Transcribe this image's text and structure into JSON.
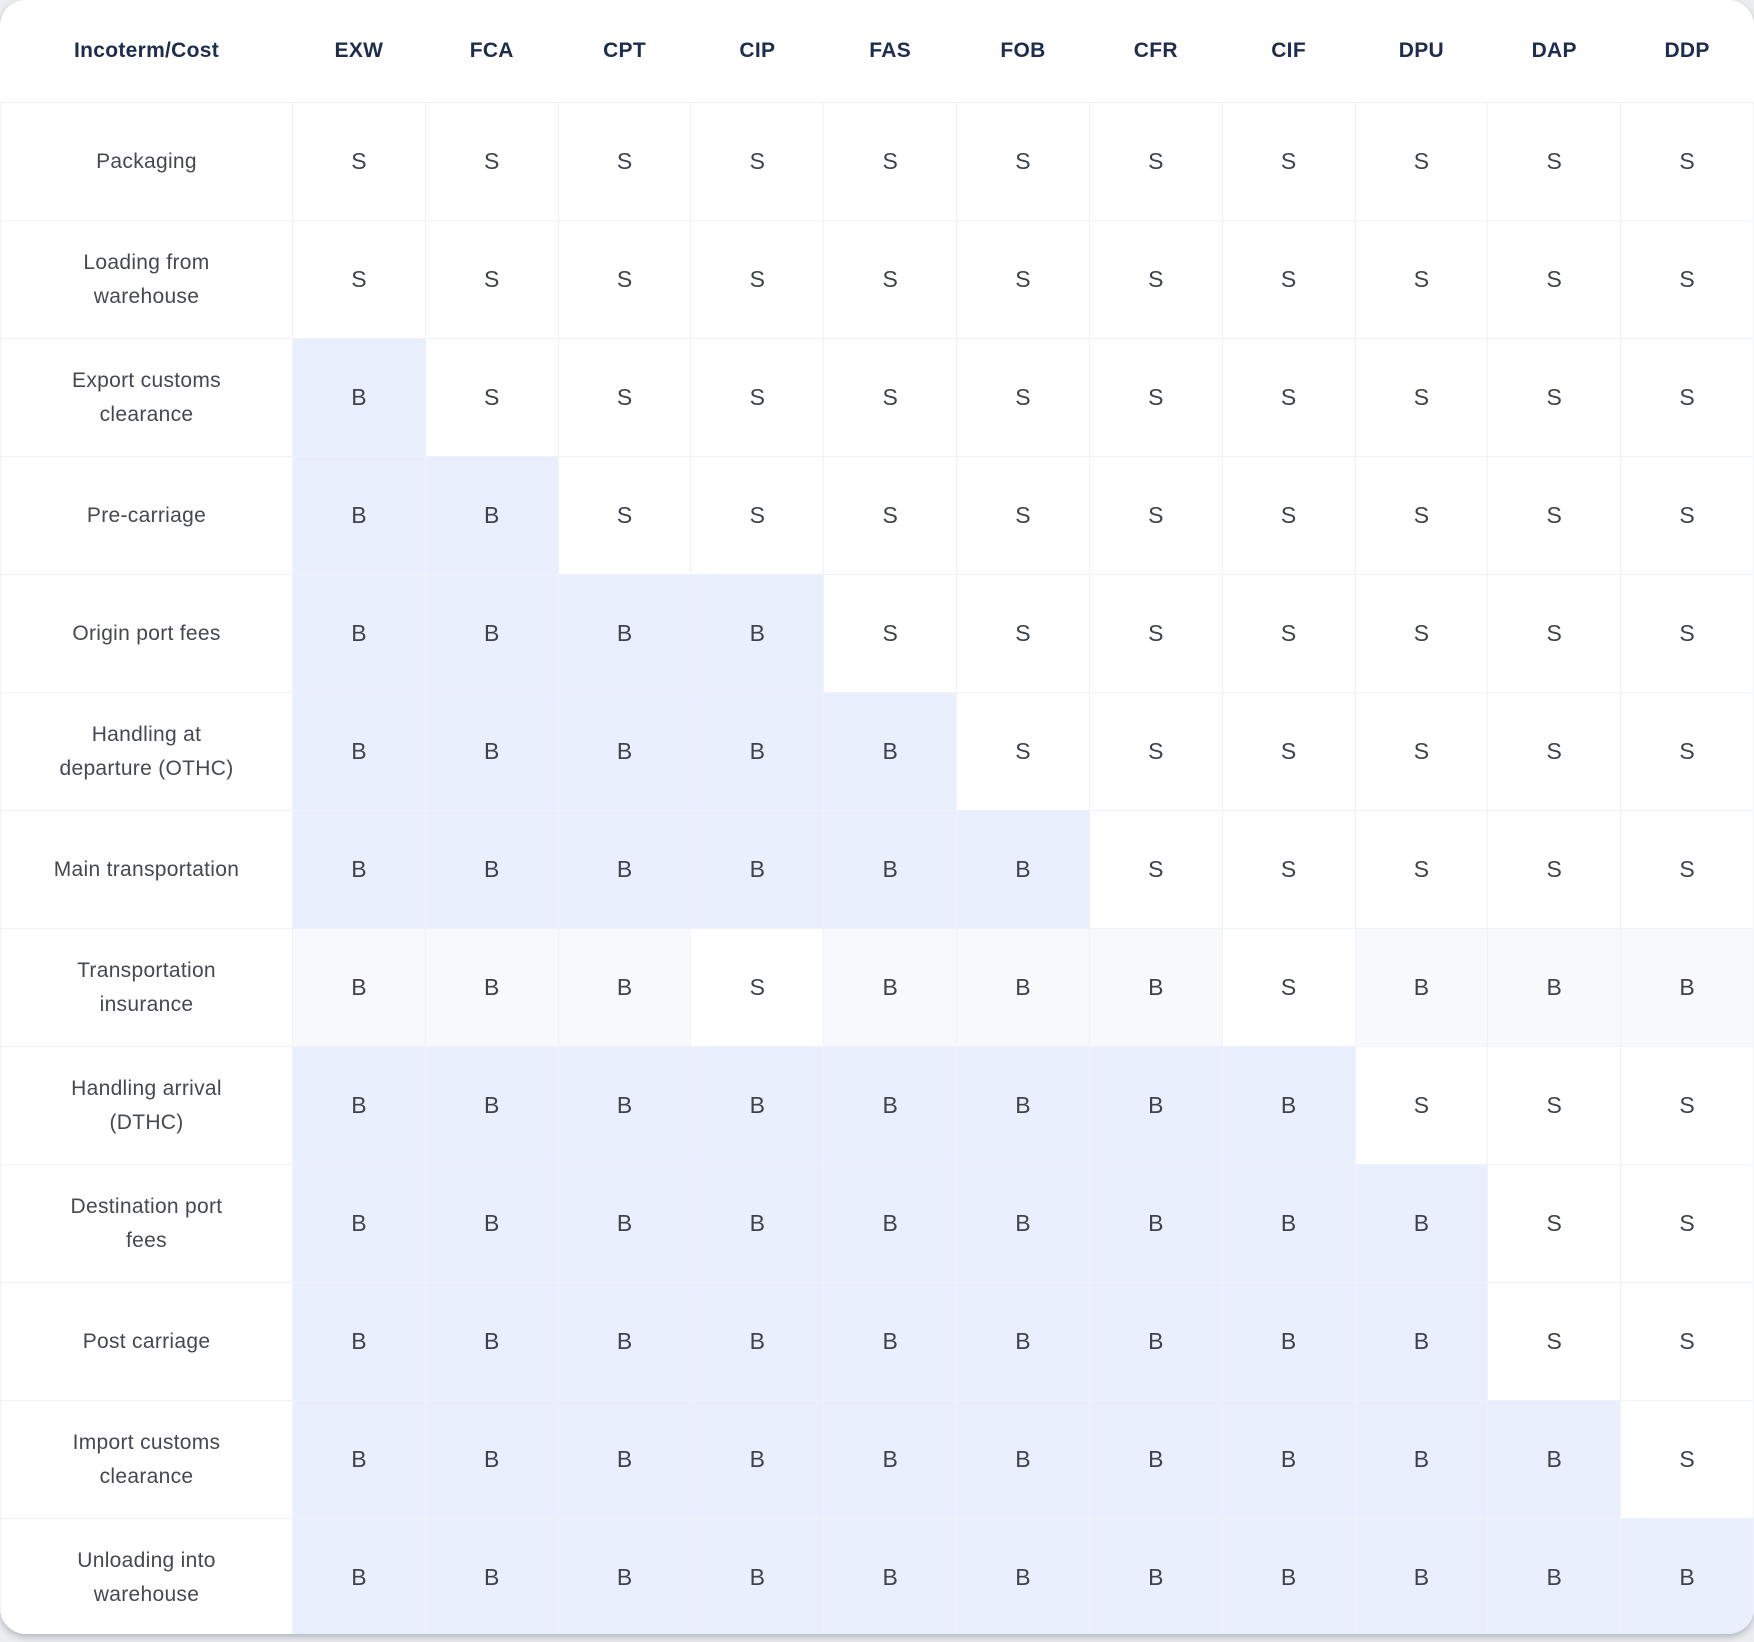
{
  "chart_data": {
    "type": "table",
    "header": [
      "Incoterm/Cost",
      "EXW",
      "FCA",
      "CPT",
      "CIP",
      "FAS",
      "FOB",
      "CFR",
      "CIF",
      "DPU",
      "DAP",
      "DDP"
    ],
    "rows": [
      {
        "label": "Packaging",
        "values": [
          "S",
          "S",
          "S",
          "S",
          "S",
          "S",
          "S",
          "S",
          "S",
          "S",
          "S"
        ]
      },
      {
        "label": "Loading from warehouse",
        "values": [
          "S",
          "S",
          "S",
          "S",
          "S",
          "S",
          "S",
          "S",
          "S",
          "S",
          "S"
        ]
      },
      {
        "label": "Export customs clearance",
        "values": [
          "B",
          "S",
          "S",
          "S",
          "S",
          "S",
          "S",
          "S",
          "S",
          "S",
          "S"
        ]
      },
      {
        "label": "Pre-carriage",
        "values": [
          "B",
          "B",
          "S",
          "S",
          "S",
          "S",
          "S",
          "S",
          "S",
          "S",
          "S"
        ]
      },
      {
        "label": "Origin port fees",
        "values": [
          "B",
          "B",
          "B",
          "B",
          "S",
          "S",
          "S",
          "S",
          "S",
          "S",
          "S"
        ]
      },
      {
        "label": "Handling at departure (OTHC)",
        "values": [
          "B",
          "B",
          "B",
          "B",
          "B",
          "S",
          "S",
          "S",
          "S",
          "S",
          "S"
        ]
      },
      {
        "label": "Main transportation",
        "values": [
          "B",
          "B",
          "B",
          "B",
          "B",
          "B",
          "S",
          "S",
          "S",
          "S",
          "S"
        ]
      },
      {
        "label": "Transportation insurance",
        "values": [
          "B",
          "B",
          "B",
          "S",
          "B",
          "B",
          "B",
          "S",
          "B",
          "B",
          "B"
        ],
        "light_tint": true
      },
      {
        "label": "Handling arrival (DTHC)",
        "values": [
          "B",
          "B",
          "B",
          "B",
          "B",
          "B",
          "B",
          "B",
          "S",
          "S",
          "S"
        ]
      },
      {
        "label": "Destination port fees",
        "values": [
          "B",
          "B",
          "B",
          "B",
          "B",
          "B",
          "B",
          "B",
          "B",
          "S",
          "S"
        ]
      },
      {
        "label": "Post carriage",
        "values": [
          "B",
          "B",
          "B",
          "B",
          "B",
          "B",
          "B",
          "B",
          "B",
          "S",
          "S"
        ]
      },
      {
        "label": "Import customs clearance",
        "values": [
          "B",
          "B",
          "B",
          "B",
          "B",
          "B",
          "B",
          "B",
          "B",
          "B",
          "S"
        ]
      },
      {
        "label": "Unloading into warehouse",
        "values": [
          "B",
          "B",
          "B",
          "B",
          "B",
          "B",
          "B",
          "B",
          "B",
          "B",
          "B"
        ]
      }
    ],
    "value_codes": [
      "S",
      "B"
    ]
  },
  "colors": {
    "buyer_cell_bg": "#e9effc",
    "buyer_cell_muted_bg": "#f7f9fd",
    "grid_line": "#eff2f6",
    "header_text": "#1e2c4e",
    "body_text": "#3e434b",
    "label_text": "#45494f",
    "card_bg": "#ffffff",
    "page_bg": "#ecedf1"
  }
}
